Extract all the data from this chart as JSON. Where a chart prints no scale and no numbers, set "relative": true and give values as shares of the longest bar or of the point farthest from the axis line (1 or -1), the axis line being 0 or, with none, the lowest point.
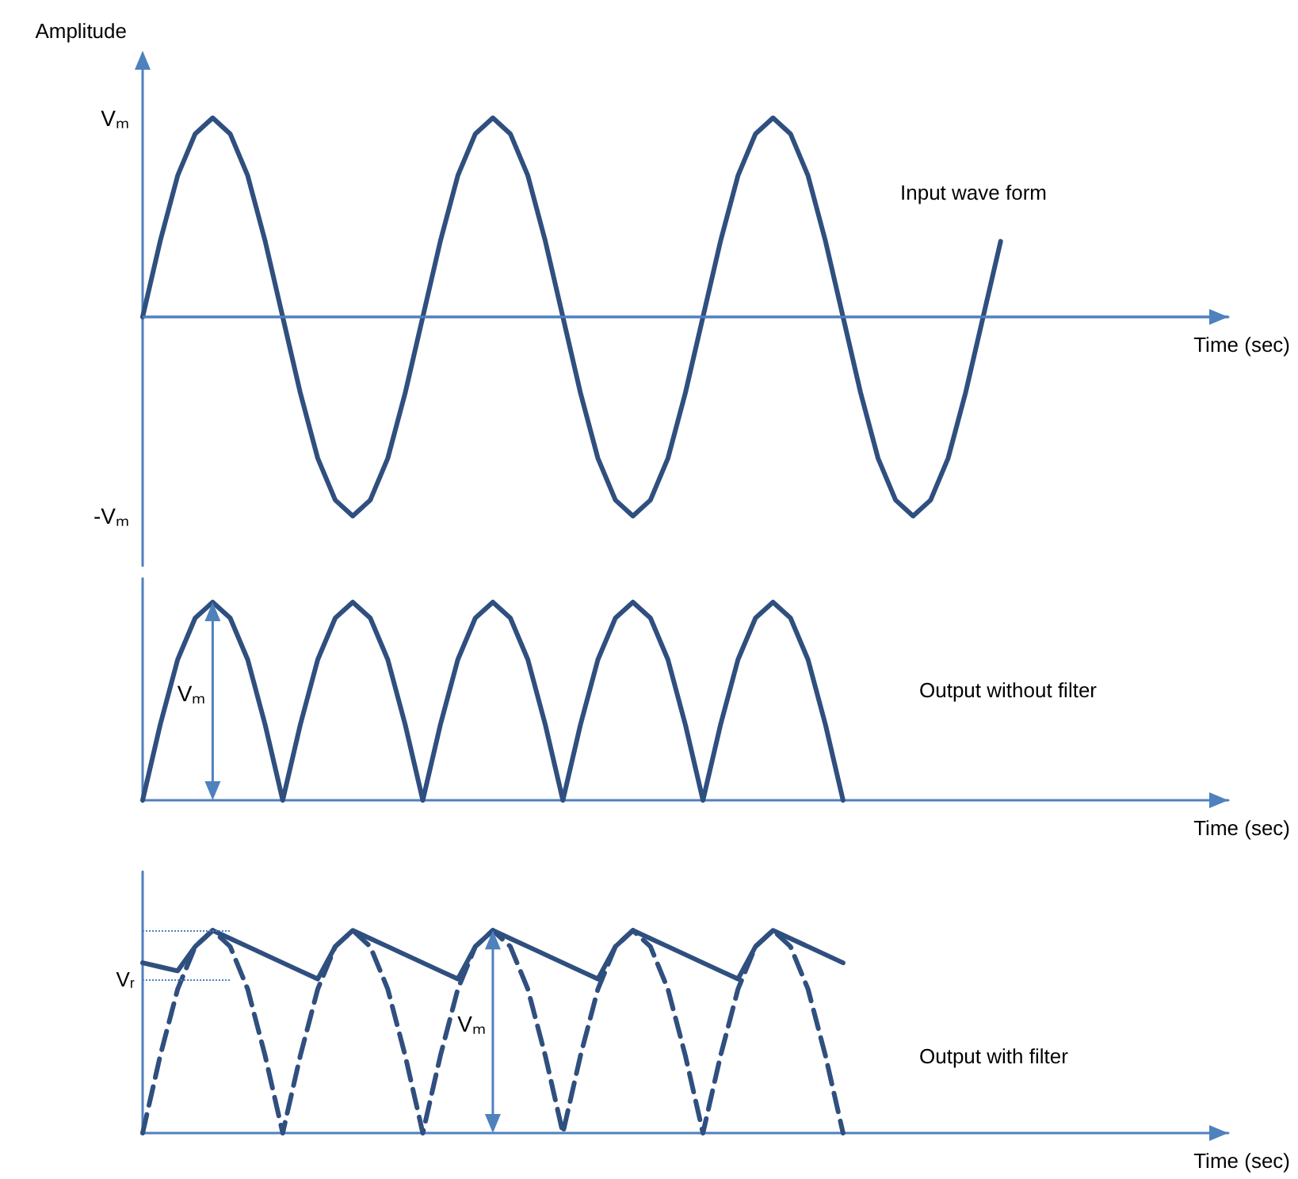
{
  "chart_data": [
    {
      "type": "line",
      "title": "Input wave form",
      "ylabel": "Amplitude",
      "xlabel": "Time (sec)",
      "relative": true,
      "marker": "none",
      "annotations": [
        "Vₘ",
        "-Vₘ"
      ],
      "ref_lines": [
        {
          "axis": "y",
          "value": 0,
          "line_style": "solid"
        }
      ],
      "categories": [
        null,
        null,
        null,
        null,
        null,
        null,
        null,
        null,
        null,
        null,
        null,
        null,
        null,
        null,
        null,
        null,
        null,
        null,
        null,
        null,
        null,
        null,
        null,
        null,
        null,
        null,
        null,
        null,
        null,
        null,
        null,
        null,
        null,
        null,
        null,
        null,
        null,
        null,
        null,
        null,
        null,
        null,
        null,
        null,
        null,
        null,
        null,
        null,
        null,
        null,
        null,
        null,
        null,
        null,
        null,
        null,
        null,
        null,
        null,
        null,
        null,
        null,
        null
      ],
      "series": [
        {
          "color": "#2f4f7f",
          "line_style": "solid",
          "values": [
            0,
            0.38,
            0.71,
            0.92,
            1,
            0.92,
            0.71,
            0.38,
            0,
            -0.38,
            -0.71,
            -0.92,
            -1,
            -0.92,
            -0.71,
            -0.38,
            0,
            0.38,
            0.71,
            0.92,
            1,
            0.92,
            0.71,
            0.38,
            0,
            -0.38,
            -0.71,
            -0.92,
            -1,
            -0.92,
            -0.71,
            -0.38,
            0,
            0.38,
            0.71,
            0.92,
            1,
            0.92,
            0.71,
            0.38,
            0,
            -0.38,
            -0.71,
            -0.92,
            -1,
            -0.92,
            -0.71,
            -0.38,
            0,
            0.38,
            null,
            null,
            null,
            null,
            null,
            null,
            null,
            null,
            null,
            null,
            null,
            null,
            null
          ]
        }
      ]
    },
    {
      "type": "line",
      "title": "Output without filter",
      "xlabel": "Time (sec)",
      "relative": true,
      "marker": "none",
      "categories": [
        null,
        null,
        null,
        null,
        null,
        null,
        null,
        null,
        null,
        null,
        null,
        null,
        null,
        null,
        null,
        null,
        null,
        null,
        null,
        null,
        null,
        null,
        null,
        null,
        null,
        null,
        null,
        null,
        null,
        null,
        null,
        null,
        null,
        null,
        null,
        null,
        null,
        null,
        null,
        null,
        null,
        null,
        null,
        null,
        null,
        null,
        null,
        null,
        null,
        null,
        null,
        null,
        null,
        null,
        null,
        null,
        null,
        null,
        null,
        null,
        null,
        null,
        null
      ],
      "annotations": [
        "Vₘ"
      ],
      "series": [
        {
          "color": "#2f4f7f",
          "line_style": "solid",
          "values": [
            0,
            0.38,
            0.71,
            0.92,
            1,
            0.92,
            0.71,
            0.38,
            0,
            0.38,
            0.71,
            0.92,
            1,
            0.92,
            0.71,
            0.38,
            0,
            0.38,
            0.71,
            0.92,
            1,
            0.92,
            0.71,
            0.38,
            0,
            0.38,
            0.71,
            0.92,
            1,
            0.92,
            0.71,
            0.38,
            0,
            0.38,
            0.71,
            0.92,
            1,
            0.92,
            0.71,
            0.38,
            0,
            null,
            null,
            null,
            null,
            null,
            null,
            null,
            null,
            null,
            null,
            null,
            null,
            null,
            null,
            null,
            null,
            null,
            null,
            null,
            null,
            null,
            null
          ]
        }
      ]
    },
    {
      "type": "line",
      "title": "Output with filter",
      "xlabel": "Time (sec)",
      "relative": true,
      "marker": "none",
      "categories": [
        null,
        null,
        null,
        null,
        null,
        null,
        null,
        null,
        null,
        null,
        null,
        null,
        null,
        null,
        null,
        null,
        null,
        null,
        null,
        null,
        null,
        null,
        null,
        null,
        null,
        null,
        null,
        null,
        null,
        null,
        null,
        null,
        null,
        null,
        null,
        null,
        null,
        null,
        null,
        null,
        null,
        null,
        null,
        null,
        null,
        null,
        null,
        null,
        null,
        null,
        null,
        null,
        null,
        null,
        null,
        null,
        null,
        null,
        null,
        null,
        null,
        null,
        null
      ],
      "annotations": [
        "Vₘ"
      ],
      "ref_lines": [
        {
          "axis": "y",
          "value": 1,
          "line_style": "dotted"
        },
        {
          "axis": "y",
          "value": 0.76,
          "label": "Vᵣ",
          "line_style": "dotted"
        }
      ],
      "series": [
        {
          "color": "#2f4f7f",
          "line_style": "dashed",
          "values": [
            0,
            0.38,
            0.71,
            0.92,
            1,
            0.92,
            0.71,
            0.38,
            0,
            0.38,
            0.71,
            0.92,
            1,
            0.92,
            0.71,
            0.38,
            0,
            0.38,
            0.71,
            0.92,
            1,
            0.92,
            0.71,
            0.38,
            0,
            0.38,
            0.71,
            0.92,
            1,
            0.92,
            0.71,
            0.38,
            0,
            0.38,
            0.71,
            0.92,
            1,
            0.92,
            0.71,
            0.38,
            0,
            null,
            null,
            null,
            null,
            null,
            null,
            null,
            null,
            null,
            null,
            null,
            null,
            null,
            null,
            null,
            null,
            null,
            null,
            null,
            null,
            null,
            null
          ]
        },
        {
          "color": "#2f4f7f",
          "line_style": "solid",
          "values": [
            0.84,
            0.82,
            0.8,
            0.92,
            1,
            0.96,
            0.92,
            0.88,
            0.84,
            0.8,
            0.76,
            0.92,
            1,
            0.96,
            0.92,
            0.88,
            0.84,
            0.8,
            0.76,
            0.92,
            1,
            0.96,
            0.92,
            0.88,
            0.84,
            0.8,
            0.76,
            0.92,
            1,
            0.96,
            0.92,
            0.88,
            0.84,
            0.8,
            0.76,
            0.92,
            1,
            0.96,
            0.92,
            0.88,
            0.84,
            null,
            null,
            null,
            null,
            null,
            null,
            null,
            null,
            null,
            null,
            null,
            null,
            null,
            null,
            null,
            null,
            null,
            null,
            null,
            null,
            null,
            null
          ]
        }
      ]
    }
  ]
}
